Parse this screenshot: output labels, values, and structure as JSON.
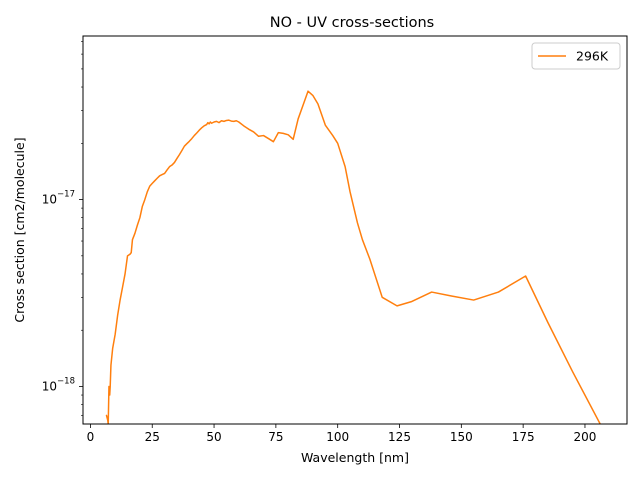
{
  "chart_data": {
    "type": "line",
    "title": "NO - UV cross-sections",
    "xlabel": "Wavelength [nm]",
    "ylabel": "Cross section [cm2/molecule]",
    "x_scale": "linear",
    "y_scale": "log",
    "xlim": [
      -3,
      217
    ],
    "ylim": [
      6.3e-19,
      7.5e-17
    ],
    "grid": false,
    "legend_position": "top-right",
    "x_ticks": [
      {
        "value": 0,
        "label": "0"
      },
      {
        "value": 25,
        "label": "25"
      },
      {
        "value": 50,
        "label": "50"
      },
      {
        "value": 75,
        "label": "75"
      },
      {
        "value": 100,
        "label": "100"
      },
      {
        "value": 125,
        "label": "125"
      },
      {
        "value": 150,
        "label": "150"
      },
      {
        "value": 175,
        "label": "175"
      },
      {
        "value": 200,
        "label": "200"
      }
    ],
    "y_ticks": [
      {
        "value": 1e-18,
        "base": "10",
        "exp": "−18"
      },
      {
        "value": 1e-17,
        "base": "10",
        "exp": "−17"
      }
    ],
    "series": [
      {
        "name": "296K",
        "color": "#ff7f0e",
        "x": [
          6.5,
          7.0,
          7.2,
          7.5,
          7.8,
          8.0,
          8.3,
          9.0,
          10.0,
          11.0,
          12.0,
          13.0,
          14.0,
          15.0,
          16.0,
          16.5,
          17.0,
          18.0,
          19.0,
          20.0,
          21.0,
          22.0,
          23.0,
          24.0,
          25.0,
          26.0,
          27.0,
          28.0,
          29.0,
          30.0,
          31.0,
          32.0,
          33.0,
          34.0,
          35.0,
          36.0,
          37.0,
          38.0,
          39.0,
          40.0,
          41.0,
          42.0,
          43.0,
          44.0,
          45.0,
          46.0,
          47.0,
          47.5,
          48.0,
          48.5,
          49.0,
          50.0,
          51.0,
          52.0,
          53.0,
          54.0,
          55.0,
          56.0,
          57.0,
          58.0,
          59.0,
          60.0,
          62.0,
          64.0,
          66.0,
          68.0,
          70.0,
          72.0,
          74.0,
          76.0,
          78.0,
          80.0,
          82.0,
          84.0,
          86.0,
          88.0,
          90.0,
          92.0,
          95.0,
          98.0,
          100.0,
          103.0,
          105.0,
          108.0,
          110.0,
          113.0,
          118.0,
          124.0,
          130.0,
          138.0,
          146.0,
          155.0,
          165.0,
          176.0,
          185.0,
          195.0,
          207.0
        ],
        "y": [
          7e-19,
          6.6e-19,
          6.3e-19,
          1e-18,
          9e-19,
          1e-18,
          1.3e-18,
          1.6e-18,
          1.9e-18,
          2.4e-18,
          2.9e-18,
          3.4e-18,
          4e-18,
          5e-18,
          5.1e-18,
          5.2e-18,
          6.1e-18,
          6.6e-18,
          7.3e-18,
          8e-18,
          9.2e-18,
          1e-17,
          1.1e-17,
          1.18e-17,
          1.22e-17,
          1.26e-17,
          1.3e-17,
          1.34e-17,
          1.36e-17,
          1.38e-17,
          1.44e-17,
          1.5e-17,
          1.53e-17,
          1.58e-17,
          1.66e-17,
          1.74e-17,
          1.83e-17,
          1.93e-17,
          1.99e-17,
          2.05e-17,
          2.12e-17,
          2.2e-17,
          2.27e-17,
          2.35e-17,
          2.42e-17,
          2.48e-17,
          2.52e-17,
          2.58e-17,
          2.54e-17,
          2.6e-17,
          2.56e-17,
          2.6e-17,
          2.62e-17,
          2.58e-17,
          2.64e-17,
          2.62e-17,
          2.65e-17,
          2.66e-17,
          2.63e-17,
          2.62e-17,
          2.64e-17,
          2.6e-17,
          2.48e-17,
          2.38e-17,
          2.3e-17,
          2.18e-17,
          2.2e-17,
          2.12e-17,
          2.04e-17,
          2.28e-17,
          2.26e-17,
          2.22e-17,
          2.1e-17,
          2.7e-17,
          3.2e-17,
          3.8e-17,
          3.6e-17,
          3.25e-17,
          2.5e-17,
          2.2e-17,
          2e-17,
          1.5e-17,
          1.1e-17,
          7.5e-18,
          6.1e-18,
          4.8e-18,
          3e-18,
          2.7e-18,
          2.85e-18,
          3.2e-18,
          3.05e-18,
          2.9e-18,
          3.2e-18,
          3.9e-18,
          2.2e-18,
          1.2e-18,
          6e-19
        ]
      }
    ]
  }
}
